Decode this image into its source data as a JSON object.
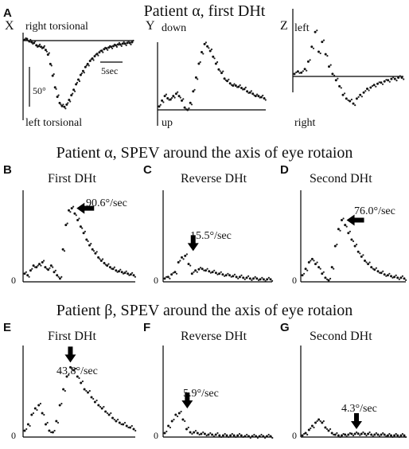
{
  "figure": {
    "row1_title": "Patient α, first DHt",
    "row2_title": "Patient α, SPEV around the axis of eye rotaion",
    "row3_title": "Patient β, SPEV around the axis of eye rotaion"
  },
  "panels": {
    "A": {
      "label": "A"
    },
    "B": {
      "label": "B"
    },
    "C": {
      "label": "C"
    },
    "D": {
      "label": "D"
    },
    "E": {
      "label": "E"
    },
    "F": {
      "label": "F"
    },
    "G": {
      "label": "G"
    }
  },
  "chart_data": [
    {
      "id": "A-X",
      "panel": "A",
      "type": "scatter",
      "axis_letter": "X",
      "top_label": "right torsional",
      "bottom_label": "left torsional",
      "scale_y_label": "50°",
      "scale_x_label": "5sec",
      "series": [
        {
          "values": [
            1,
            2,
            -1,
            -2,
            -3,
            -6,
            -7,
            -8,
            -9,
            -12,
            -18,
            -30,
            -45,
            -60,
            -72,
            -80,
            -84,
            -85,
            -82,
            -76,
            -70,
            -63,
            -56,
            -50,
            -44,
            -39,
            -34,
            -30,
            -26,
            -23,
            -20,
            -17,
            -15,
            -13,
            -11,
            -10,
            -9,
            -8,
            -7,
            -6,
            -5,
            -5,
            -4,
            -4,
            -3,
            -3,
            -2
          ]
        }
      ]
    },
    {
      "id": "A-Y",
      "panel": "A",
      "type": "scatter",
      "axis_letter": "Y",
      "top_label": "down",
      "bottom_label": "up",
      "series": [
        {
          "values": [
            3,
            8,
            12,
            10,
            9,
            12,
            14,
            12,
            8,
            2,
            0,
            6,
            16,
            28,
            40,
            50,
            57,
            55,
            51,
            46,
            40,
            35,
            32,
            27,
            25,
            23,
            21,
            21,
            20,
            19,
            18,
            16,
            15,
            14,
            12,
            12,
            11,
            10
          ]
        }
      ]
    },
    {
      "id": "A-Z",
      "panel": "A",
      "type": "scatter",
      "axis_letter": "Z",
      "top_label": "left",
      "bottom_label": "right",
      "series": [
        {
          "values": [
            2,
            4,
            3,
            6,
            12,
            24,
            36,
            20,
            28,
            18,
            8,
            2,
            -3,
            -8,
            -15,
            -18,
            -20,
            -22,
            -18,
            -15,
            -13,
            -10,
            -9,
            -7,
            -6,
            -5,
            -4,
            -3,
            -2,
            -2,
            -1,
            -1
          ]
        }
      ]
    },
    {
      "id": "B",
      "panel": "B",
      "type": "scatter",
      "title": "First DHt",
      "y_zero_label": "0",
      "peak_label": "90.6°/sec",
      "series": [
        {
          "values": [
            10,
            8,
            14,
            20,
            18,
            22,
            24,
            18,
            15,
            20,
            12,
            8,
            4,
            40,
            70,
            88,
            90.6,
            84,
            76,
            68,
            60,
            52,
            45,
            40,
            35,
            30,
            26,
            23,
            20,
            18,
            16,
            14,
            13,
            12,
            11,
            10,
            9,
            8
          ]
        }
      ]
    },
    {
      "id": "C",
      "panel": "C",
      "type": "scatter",
      "title": "Reverse DHt",
      "y_zero_label": "0",
      "peak_label": "15.5°/sec",
      "series": [
        {
          "values": [
            4,
            6,
            9,
            12,
            24,
            30,
            32,
            22,
            10,
            14,
            15.5,
            16,
            14,
            13,
            12,
            11,
            10,
            9,
            8,
            8,
            7,
            6,
            6,
            5,
            5,
            4,
            4,
            4,
            3,
            3,
            3,
            3
          ]
        }
      ]
    },
    {
      "id": "D",
      "panel": "D",
      "type": "scatter",
      "title": "Second DHt",
      "y_zero_label": "0",
      "peak_label": "76.0°/sec",
      "series": [
        {
          "values": [
            8,
            16,
            24,
            28,
            22,
            18,
            10,
            5,
            2,
            18,
            44,
            65,
            76,
            70,
            60,
            52,
            44,
            37,
            31,
            26,
            22,
            18,
            15,
            13,
            11,
            9,
            8,
            7,
            6,
            5,
            5,
            4
          ]
        }
      ]
    },
    {
      "id": "E",
      "panel": "E",
      "type": "scatter",
      "title": "First DHt",
      "y_zero_label": "0",
      "peak_label": "43.8°/sec",
      "series": [
        {
          "values": [
            4,
            8,
            14,
            18,
            20,
            15,
            8,
            4,
            3,
            10,
            20,
            30,
            38,
            43.8,
            42,
            38,
            34,
            30,
            28,
            25,
            22,
            20,
            18,
            16,
            14,
            12,
            10,
            9,
            8,
            7,
            6,
            5
          ]
        }
      ]
    },
    {
      "id": "F",
      "panel": "F",
      "type": "scatter",
      "title": "Reverse DHt",
      "y_zero_label": "0",
      "peak_label": "5.9°/sec",
      "series": [
        {
          "values": [
            5,
            14,
            20,
            28,
            30,
            22,
            10,
            6,
            5.9,
            5,
            4,
            4,
            3,
            3,
            3,
            2,
            2,
            2,
            2,
            2,
            2,
            2,
            1,
            1,
            1,
            1,
            1,
            1,
            1,
            1
          ]
        }
      ]
    },
    {
      "id": "G",
      "panel": "G",
      "type": "scatter",
      "title": "Second DHt",
      "y_zero_label": "0",
      "peak_label": "4.3°/sec",
      "series": [
        {
          "values": [
            2,
            5,
            9,
            14,
            18,
            22,
            18,
            12,
            8,
            5,
            3,
            2,
            2,
            3,
            3,
            4,
            4,
            4.3,
            4,
            4,
            4,
            3,
            3,
            3,
            3,
            3,
            2,
            2,
            2,
            2,
            2,
            2
          ]
        }
      ]
    }
  ]
}
